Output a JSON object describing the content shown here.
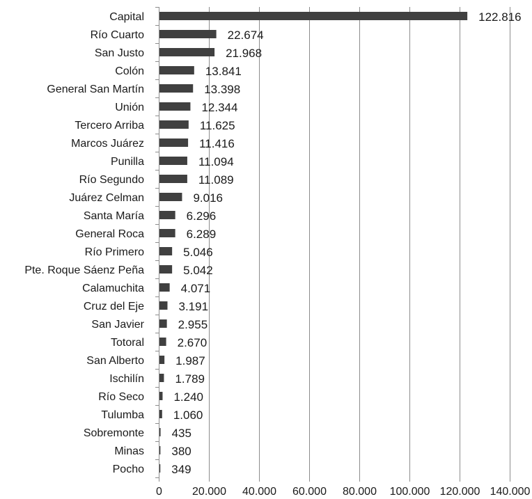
{
  "chart_data": {
    "type": "bar",
    "orientation": "horizontal",
    "categories": [
      "Capital",
      "Río Cuarto",
      "San Justo",
      "Colón",
      "General San Martín",
      "Unión",
      "Tercero Arriba",
      "Marcos Juárez",
      "Punilla",
      "Río Segundo",
      "Juárez Celman",
      "Santa María",
      "General Roca",
      "Río Primero",
      "Pte. Roque Sáenz Peña",
      "Calamuchita",
      "Cruz del Eje",
      "San Javier",
      "Totoral",
      "San Alberto",
      "Ischilín",
      "Río Seco",
      "Tulumba",
      "Sobremonte",
      "Minas",
      "Pocho"
    ],
    "values": [
      122816,
      22674,
      21968,
      13841,
      13398,
      12344,
      11625,
      11416,
      11094,
      11089,
      9016,
      6296,
      6289,
      5046,
      5042,
      4071,
      3191,
      2955,
      2670,
      1987,
      1789,
      1240,
      1060,
      435,
      380,
      349
    ],
    "data_labels": [
      "122.816",
      "22.674",
      "21.968",
      "13.841",
      "13.398",
      "12.344",
      "11.625",
      "11.416",
      "11.094",
      "11.089",
      "9.016",
      "6.296",
      "6.289",
      "5.046",
      "5.042",
      "4.071",
      "3.191",
      "2.955",
      "2.670",
      "1.987",
      "1.789",
      "1.240",
      "1.060",
      "435",
      "380",
      "349"
    ],
    "xticks": [
      0,
      20000,
      40000,
      60000,
      80000,
      100000,
      120000,
      140000
    ],
    "xtick_labels": [
      "0",
      "20.000",
      "40.000",
      "60.000",
      "80.000",
      "100.000",
      "120.000",
      "140.000"
    ],
    "xlim": [
      0,
      140000
    ],
    "grid": "vertical",
    "bar_color": "#404040",
    "grid_color": "#8c8c8c",
    "title": "",
    "xlabel": "",
    "ylabel": ""
  }
}
